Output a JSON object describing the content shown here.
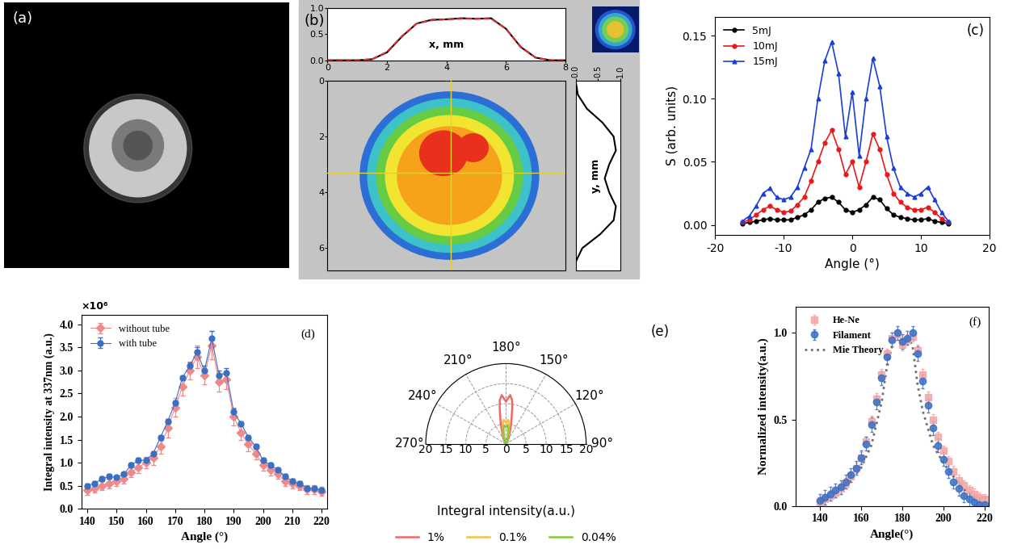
{
  "chart_data": [
    {
      "type": "image",
      "panel": "(a)"
    },
    {
      "type": "beam_profile",
      "panel": "(b)",
      "x_profile": {
        "xlabel": "x, mm",
        "x": [
          0,
          0.5,
          1,
          1.5,
          2,
          2.5,
          3,
          3.5,
          4,
          4.5,
          5,
          5.5,
          6,
          6.5,
          7,
          7.5,
          8
        ],
        "series": [
          {
            "color": "#000000",
            "line_style": "solid",
            "values": [
              0.0,
              0.0,
              0.0,
              0.02,
              0.15,
              0.45,
              0.7,
              0.77,
              0.78,
              0.8,
              0.79,
              0.8,
              0.6,
              0.25,
              0.05,
              0.0,
              0.0
            ]
          },
          {
            "color": "#e03030",
            "line_style": "dashed",
            "values": [
              0.0,
              0.0,
              0.0,
              0.02,
              0.16,
              0.46,
              0.7,
              0.76,
              0.78,
              0.79,
              0.79,
              0.79,
              0.6,
              0.26,
              0.05,
              0.0,
              0.0
            ]
          }
        ],
        "xlim": [
          0,
          8
        ],
        "xticks": [
          0,
          2,
          4,
          6,
          8
        ],
        "ylim": [
          0,
          1
        ],
        "yticks": [
          {
            "value": 0,
            "label": "0.0"
          },
          {
            "value": 0.5,
            "label": "0.5"
          },
          {
            "value": 1,
            "label": "1.0"
          }
        ]
      },
      "image": {
        "ylim": [
          6.8,
          0
        ],
        "yticks": [
          0,
          2,
          4,
          6
        ]
      },
      "y_profile": {
        "ylabel": "y, mm",
        "y": [
          0,
          0.5,
          1,
          1.5,
          2,
          2.5,
          3,
          3.5,
          4,
          4.5,
          5,
          5.5,
          6,
          6.5
        ],
        "values": [
          0.0,
          0.05,
          0.25,
          0.6,
          0.85,
          0.9,
          0.75,
          0.65,
          0.75,
          0.9,
          0.85,
          0.55,
          0.15,
          0.0
        ],
        "color": "#000000",
        "xlim": [
          0,
          1
        ],
        "xticks": [
          {
            "value": 0,
            "label": "0.0"
          },
          {
            "value": 0.5,
            "label": "0.5"
          },
          {
            "value": 1,
            "label": "1.0"
          }
        ]
      }
    },
    {
      "type": "line",
      "panel": "(c)",
      "x": [
        -16,
        -15,
        -14,
        -13,
        -12,
        -11,
        -10,
        -9,
        -8,
        -7,
        -6,
        -5,
        -4,
        -3,
        -2,
        -1,
        0,
        1,
        2,
        3,
        4,
        5,
        6,
        7,
        8,
        9,
        10,
        11,
        12,
        13,
        14
      ],
      "series": [
        {
          "name": "5mJ",
          "color": "#000000",
          "marker": "circle",
          "values": [
            0.001,
            0.002,
            0.003,
            0.004,
            0.005,
            0.004,
            0.004,
            0.004,
            0.006,
            0.008,
            0.012,
            0.018,
            0.021,
            0.022,
            0.018,
            0.012,
            0.01,
            0.012,
            0.016,
            0.022,
            0.02,
            0.013,
            0.008,
            0.006,
            0.005,
            0.004,
            0.004,
            0.005,
            0.003,
            0.002,
            0.001
          ]
        },
        {
          "name": "10mJ",
          "color": "#e8191c",
          "marker": "circle",
          "values": [
            0.002,
            0.004,
            0.008,
            0.012,
            0.015,
            0.012,
            0.01,
            0.011,
            0.016,
            0.022,
            0.035,
            0.05,
            0.065,
            0.075,
            0.06,
            0.04,
            0.05,
            0.03,
            0.05,
            0.072,
            0.06,
            0.04,
            0.025,
            0.018,
            0.014,
            0.012,
            0.012,
            0.014,
            0.01,
            0.005,
            0.002
          ]
        },
        {
          "name": "15mJ",
          "color": "#1a3fd6",
          "marker": "triangle",
          "values": [
            0.003,
            0.007,
            0.015,
            0.025,
            0.029,
            0.022,
            0.02,
            0.022,
            0.03,
            0.045,
            0.06,
            0.1,
            0.13,
            0.145,
            0.12,
            0.07,
            0.105,
            0.055,
            0.1,
            0.132,
            0.11,
            0.07,
            0.045,
            0.03,
            0.025,
            0.022,
            0.025,
            0.03,
            0.02,
            0.01,
            0.003
          ]
        }
      ],
      "xlabel": "Angle (°)",
      "ylabel": "S (arb. units)",
      "xlim": [
        -20,
        20
      ],
      "xticks": [
        -20,
        -10,
        0,
        10,
        20
      ],
      "ylim": [
        -0.008,
        0.165
      ],
      "yticks": [
        {
          "value": 0,
          "label": "0.00"
        },
        {
          "value": 0.05,
          "label": "0.05"
        },
        {
          "value": 0.1,
          "label": "0.10"
        },
        {
          "value": 0.15,
          "label": "0.15"
        }
      ],
      "legend": "upper left"
    },
    {
      "type": "line",
      "panel": "(d)",
      "x": [
        140,
        142.5,
        145,
        147.5,
        150,
        152.5,
        155,
        157.5,
        160,
        162.5,
        165,
        167.5,
        170,
        172.5,
        175,
        177.5,
        180,
        182.5,
        185,
        187.5,
        190,
        192.5,
        195,
        197.5,
        200,
        202.5,
        205,
        207.5,
        210,
        212.5,
        215,
        217.5,
        220
      ],
      "series": [
        {
          "name": "without tube",
          "color": "#f08a8a",
          "marker": "diamond",
          "line_style": "solid",
          "values": [
            0.4,
            0.45,
            0.5,
            0.55,
            0.6,
            0.65,
            0.8,
            0.9,
            1.0,
            1.1,
            1.35,
            1.75,
            2.2,
            2.65,
            3.0,
            3.3,
            2.9,
            3.55,
            2.75,
            2.8,
            2.0,
            1.65,
            1.4,
            1.2,
            0.95,
            0.85,
            0.75,
            0.6,
            0.55,
            0.5,
            0.42,
            0.42,
            0.38
          ],
          "errors": [
            0.1,
            0.1,
            0.1,
            0.1,
            0.1,
            0.1,
            0.12,
            0.12,
            0.12,
            0.15,
            0.15,
            0.2,
            0.2,
            0.2,
            0.2,
            0.25,
            0.2,
            0.3,
            0.2,
            0.2,
            0.2,
            0.15,
            0.15,
            0.12,
            0.12,
            0.12,
            0.1,
            0.1,
            0.1,
            0.1,
            0.1,
            0.1,
            0.1
          ]
        },
        {
          "name": "with tube",
          "color": "#3a6fc4",
          "marker": "circle",
          "line_style": "solid",
          "values": [
            0.5,
            0.55,
            0.65,
            0.7,
            0.68,
            0.75,
            0.95,
            1.05,
            1.05,
            1.2,
            1.55,
            1.9,
            2.3,
            2.85,
            3.1,
            3.4,
            3.0,
            3.7,
            2.9,
            2.95,
            2.1,
            1.85,
            1.55,
            1.35,
            1.05,
            0.95,
            0.85,
            0.7,
            0.6,
            0.55,
            0.45,
            0.45,
            0.4
          ],
          "errors": [
            0.05,
            0.05,
            0.05,
            0.05,
            0.05,
            0.05,
            0.05,
            0.05,
            0.05,
            0.05,
            0.05,
            0.05,
            0.05,
            0.05,
            0.08,
            0.1,
            0.1,
            0.15,
            0.1,
            0.1,
            0.08,
            0.05,
            0.05,
            0.05,
            0.05,
            0.05,
            0.05,
            0.05,
            0.05,
            0.05,
            0.05,
            0.05,
            0.05
          ]
        }
      ],
      "xlabel": "Angle (°)",
      "ylabel": "Integral intensity at 337nm (a.u.)",
      "annotation": "×10⁶",
      "xlim": [
        138,
        222
      ],
      "xticks": [
        140,
        150,
        160,
        170,
        180,
        190,
        200,
        210,
        220
      ],
      "ylim": [
        0,
        4.2
      ],
      "yticks": [
        {
          "value": 0,
          "label": "0.0"
        },
        {
          "value": 0.5,
          "label": "0.5"
        },
        {
          "value": 1,
          "label": "1.0"
        },
        {
          "value": 1.5,
          "label": "1.5"
        },
        {
          "value": 2,
          "label": "2.0"
        },
        {
          "value": 2.5,
          "label": "2.5"
        },
        {
          "value": 3,
          "label": "3.0"
        },
        {
          "value": 3.5,
          "label": "3.5"
        },
        {
          "value": 4,
          "label": "4.0"
        }
      ],
      "legend": "upper left"
    },
    {
      "type": "polar",
      "panel": "(e)",
      "theta": [
        90,
        120,
        140,
        150,
        160,
        165,
        170,
        172,
        175,
        177,
        180,
        183,
        185,
        188,
        190,
        195,
        200,
        210,
        220,
        240,
        270
      ],
      "series": [
        {
          "name": "1%",
          "color": "#f0686a",
          "values": [
            0,
            0.2,
            0.5,
            1,
            2.5,
            5,
            9,
            11,
            12.2,
            11.5,
            10.5,
            11.5,
            12.2,
            11,
            9,
            5,
            2.5,
            1,
            0.5,
            0.2,
            0
          ]
        },
        {
          "name": "0.1%",
          "color": "#f5c242",
          "values": [
            0,
            0.1,
            0.3,
            0.5,
            1.2,
            2.5,
            4.5,
            5.5,
            6.0,
            5.7,
            5.2,
            5.7,
            6.0,
            5.5,
            4.5,
            2.5,
            1.2,
            0.5,
            0.3,
            0.1,
            0
          ]
        },
        {
          "name": "0.04%",
          "color": "#8cc63f",
          "values": [
            0,
            0.1,
            0.2,
            0.4,
            1,
            2,
            3.5,
            4.2,
            4.6,
            4.4,
            4.1,
            4.4,
            4.6,
            4.2,
            3.5,
            2,
            1,
            0.4,
            0.2,
            0.1,
            0
          ]
        }
      ],
      "xlabel": "Integral intensity(a.u.)",
      "thetalim": [
        90,
        270
      ],
      "thetaticks": [
        {
          "value": 90,
          "label": "90°"
        },
        {
          "value": 120,
          "label": "120°"
        },
        {
          "value": 150,
          "label": "150°"
        },
        {
          "value": 180,
          "label": "180°"
        },
        {
          "value": 210,
          "label": "210°"
        },
        {
          "value": 240,
          "label": "240°"
        },
        {
          "value": 270,
          "label": "270°"
        }
      ],
      "rlim": [
        0,
        20
      ],
      "rticks": [
        0,
        5,
        10,
        15,
        20
      ],
      "grid": true,
      "legend": "lower center"
    },
    {
      "type": "line",
      "panel": "(f)",
      "series": [
        {
          "name": "He-Ne",
          "color": "#f4a6a6",
          "marker": "square",
          "line_style": "none",
          "x": [
            140,
            142.5,
            145,
            147.5,
            150,
            152.5,
            155,
            157.5,
            160,
            162.5,
            165,
            167.5,
            170,
            172.5,
            175,
            177.5,
            180,
            182.5,
            185,
            187.5,
            190,
            192.5,
            195,
            197.5,
            200,
            202.5,
            205,
            207.5,
            210,
            212.5,
            215,
            217.5,
            220
          ],
          "values": [
            0.02,
            0.04,
            0.06,
            0.08,
            0.1,
            0.13,
            0.17,
            0.22,
            0.28,
            0.37,
            0.49,
            0.62,
            0.76,
            0.88,
            0.97,
            0.99,
            0.93,
            0.96,
            0.98,
            0.9,
            0.76,
            0.63,
            0.5,
            0.4,
            0.32,
            0.26,
            0.2,
            0.15,
            0.12,
            0.09,
            0.07,
            0.05,
            0.04
          ],
          "errors": [
            0.03,
            0.03,
            0.03,
            0.03,
            0.03,
            0.03,
            0.03,
            0.03,
            0.03,
            0.03,
            0.03,
            0.03,
            0.03,
            0.03,
            0.03,
            0.03,
            0.03,
            0.03,
            0.03,
            0.03,
            0.03,
            0.03,
            0.03,
            0.03,
            0.03,
            0.03,
            0.03,
            0.03,
            0.03,
            0.03,
            0.03,
            0.03,
            0.03
          ]
        },
        {
          "name": "Filament",
          "color": "#3a6fc4",
          "marker": "circle",
          "line_style": "none",
          "x": [
            140,
            142.5,
            145,
            147.5,
            150,
            152.5,
            155,
            157.5,
            160,
            162.5,
            165,
            167.5,
            170,
            172.5,
            175,
            177.5,
            180,
            182.5,
            185,
            187.5,
            190,
            192.5,
            195,
            197.5,
            200,
            202.5,
            205,
            207.5,
            210,
            212.5,
            215,
            217.5,
            220
          ],
          "values": [
            0.03,
            0.05,
            0.07,
            0.09,
            0.11,
            0.14,
            0.18,
            0.22,
            0.28,
            0.36,
            0.47,
            0.6,
            0.74,
            0.86,
            0.96,
            1.0,
            0.95,
            0.97,
            1.0,
            0.88,
            0.72,
            0.58,
            0.45,
            0.35,
            0.27,
            0.2,
            0.14,
            0.1,
            0.06,
            0.04,
            0.02,
            0.01,
            0.01
          ],
          "errors": [
            0.04,
            0.04,
            0.04,
            0.04,
            0.04,
            0.04,
            0.04,
            0.04,
            0.04,
            0.04,
            0.04,
            0.04,
            0.04,
            0.04,
            0.04,
            0.04,
            0.04,
            0.04,
            0.04,
            0.04,
            0.04,
            0.04,
            0.04,
            0.04,
            0.04,
            0.04,
            0.04,
            0.04,
            0.04,
            0.04,
            0.04,
            0.04,
            0.04
          ]
        },
        {
          "name": "Mie Theory",
          "color": "#707070",
          "marker": "none",
          "line_style": "dotted",
          "x": [
            140,
            145,
            150,
            155,
            160,
            165,
            170,
            172.5,
            175,
            177.5,
            180,
            182.5,
            185,
            187.5,
            190,
            195,
            200,
            205,
            210,
            215,
            220
          ],
          "values": [
            0.02,
            0.05,
            0.1,
            0.15,
            0.22,
            0.35,
            0.6,
            0.8,
            0.92,
            0.98,
            0.96,
            0.97,
            0.93,
            0.7,
            0.55,
            0.35,
            0.25,
            0.17,
            0.1,
            0.05,
            0.02
          ]
        }
      ],
      "xlabel": "Angle(°)",
      "ylabel": "Normalized intensity(a.u.)",
      "xlim": [
        128,
        222
      ],
      "xticks": [
        140,
        160,
        180,
        200,
        220
      ],
      "ylim": [
        0,
        1.15
      ],
      "yticks": [
        {
          "value": 0,
          "label": "0.0"
        },
        {
          "value": 0.5,
          "label": "0.5"
        },
        {
          "value": 1,
          "label": "1.0"
        }
      ],
      "legend": "upper left"
    }
  ]
}
